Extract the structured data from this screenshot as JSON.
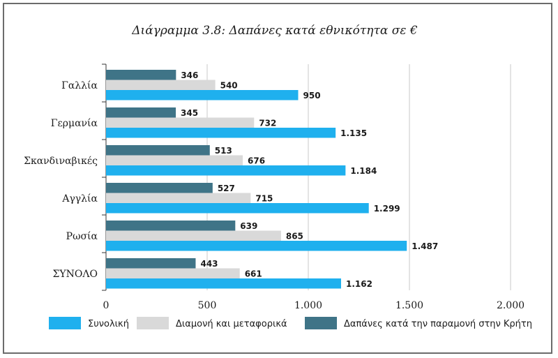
{
  "chart_data": {
    "type": "bar",
    "orientation": "horizontal",
    "title": "Διάγραμμα 3.8: Δαπάνες κατά εθνικότητα σε €",
    "categories": [
      "Γαλλία",
      "Γερμανία",
      "Σκανδιναβικές",
      "Αγγλία",
      "Ρωσία",
      "ΣΥΝΟΛΟ"
    ],
    "series": [
      {
        "name": "Δαπάνες κατά την παραμονή στην Κρήτη",
        "color": "#3f7487",
        "values": [
          346,
          345,
          513,
          527,
          639,
          443
        ],
        "labels": [
          "346",
          "345",
          "513",
          "527",
          "639",
          "443"
        ]
      },
      {
        "name": "Διαμονή και μεταφορικά",
        "color": "#d9d9d9",
        "values": [
          540,
          732,
          676,
          715,
          865,
          661
        ],
        "labels": [
          "540",
          "732",
          "676",
          "715",
          "865",
          "661"
        ]
      },
      {
        "name": "Συνολική",
        "color": "#1fb0ee",
        "values": [
          950,
          1135,
          1184,
          1299,
          1487,
          1162
        ],
        "labels": [
          "950",
          "1.135",
          "1.184",
          "1.299",
          "1.487",
          "1.162"
        ]
      }
    ],
    "legend_order": [
      2,
      1,
      0
    ],
    "xlim": [
      0,
      2000
    ],
    "xticks": [
      0,
      500,
      1000,
      1500,
      2000
    ],
    "xtick_labels": [
      "0",
      "500",
      "1.000",
      "1.500",
      "2.000"
    ],
    "grid": "vertical",
    "legend_position": "bottom"
  }
}
